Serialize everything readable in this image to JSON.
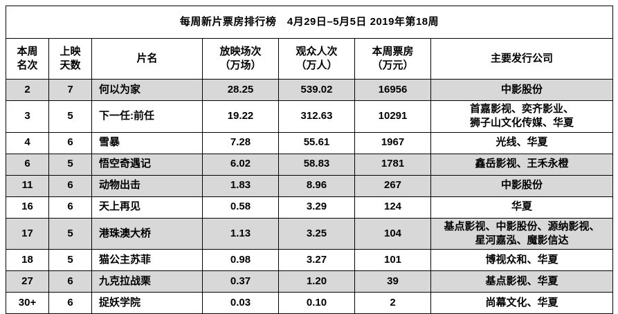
{
  "page": {
    "title": "每周新片票房排行榜　4月29日–5月5日  2019年第18周"
  },
  "table": {
    "headers": [
      {
        "key": "rank",
        "lines": [
          "本周",
          "名次"
        ]
      },
      {
        "key": "days",
        "lines": [
          "上映",
          "天数"
        ]
      },
      {
        "key": "film",
        "lines": [
          "片名"
        ]
      },
      {
        "key": "screenings",
        "lines": [
          "放映场次",
          "（万场）"
        ]
      },
      {
        "key": "audience",
        "lines": [
          "观众人次",
          "（万人）"
        ]
      },
      {
        "key": "box-office",
        "lines": [
          "本周票房",
          "（万元）"
        ]
      },
      {
        "key": "distributor",
        "lines": [
          "主要发行公司"
        ]
      }
    ],
    "rows": [
      {
        "rank": "2",
        "days": "7",
        "film": "何以为家",
        "screenings": "28.25",
        "audience": "539.02",
        "box_office": "16956",
        "distributors": [
          "中影股份"
        ],
        "shaded": true
      },
      {
        "rank": "3",
        "days": "5",
        "film": "下一任:前任",
        "screenings": "19.22",
        "audience": "312.63",
        "box_office": "10291",
        "distributors": [
          "首嘉影视、奕齐影业、",
          "狮子山文化传媒、华夏"
        ],
        "shaded": false
      },
      {
        "rank": "4",
        "days": "6",
        "film": "雪暴",
        "screenings": "7.28",
        "audience": "55.61",
        "box_office": "1967",
        "distributors": [
          "光线、华夏"
        ],
        "shaded": false
      },
      {
        "rank": "6",
        "days": "5",
        "film": "悟空奇遇记",
        "screenings": "6.02",
        "audience": "58.83",
        "box_office": "1781",
        "distributors": [
          "鑫岳影视、王禾永橙"
        ],
        "shaded": true
      },
      {
        "rank": "11",
        "days": "6",
        "film": "动物出击",
        "screenings": "1.83",
        "audience": "8.96",
        "box_office": "267",
        "distributors": [
          "中影股份"
        ],
        "shaded": true
      },
      {
        "rank": "16",
        "days": "6",
        "film": "天上再见",
        "screenings": "0.58",
        "audience": "3.29",
        "box_office": "124",
        "distributors": [
          "华夏"
        ],
        "shaded": false
      },
      {
        "rank": "17",
        "days": "5",
        "film": "港珠澳大桥",
        "screenings": "1.13",
        "audience": "3.25",
        "box_office": "104",
        "distributors": [
          "基点影视、中影股份、源纳影视、",
          "星河嘉泓、魔影信达"
        ],
        "shaded": true
      },
      {
        "rank": "18",
        "days": "5",
        "film": "猫公主苏菲",
        "screenings": "0.98",
        "audience": "3.27",
        "box_office": "101",
        "distributors": [
          "博视众和、华夏"
        ],
        "shaded": false
      },
      {
        "rank": "27",
        "days": "6",
        "film": "九克拉战栗",
        "screenings": "0.37",
        "audience": "1.20",
        "box_office": "39",
        "distributors": [
          "基点影视、华夏"
        ],
        "shaded": true
      },
      {
        "rank": "30+",
        "days": "6",
        "film": "捉妖学院",
        "screenings": "0.03",
        "audience": "0.10",
        "box_office": "2",
        "distributors": [
          "尚幕文化、华夏"
        ],
        "shaded": false
      }
    ]
  },
  "chart_data": {
    "type": "table",
    "title": "每周新片票房排行榜 4月29日–5月5日 2019年第18周",
    "columns": [
      "本周名次",
      "上映天数",
      "片名",
      "放映场次（万场）",
      "观众人次（万人）",
      "本周票房（万元）",
      "主要发行公司"
    ],
    "rows": [
      [
        "2",
        7,
        "何以为家",
        28.25,
        539.02,
        16956,
        "中影股份"
      ],
      [
        "3",
        5,
        "下一任:前任",
        19.22,
        312.63,
        10291,
        "首嘉影视、奕齐影业、狮子山文化传媒、华夏"
      ],
      [
        "4",
        6,
        "雪暴",
        7.28,
        55.61,
        1967,
        "光线、华夏"
      ],
      [
        "6",
        5,
        "悟空奇遇记",
        6.02,
        58.83,
        1781,
        "鑫岳影视、王禾永橙"
      ],
      [
        "11",
        6,
        "动物出击",
        1.83,
        8.96,
        267,
        "中影股份"
      ],
      [
        "16",
        6,
        "天上再见",
        0.58,
        3.29,
        124,
        "华夏"
      ],
      [
        "17",
        5,
        "港珠澳大桥",
        1.13,
        3.25,
        104,
        "基点影视、中影股份、源纳影视、星河嘉泓、魔影信达"
      ],
      [
        "18",
        5,
        "猫公主苏菲",
        0.98,
        3.27,
        101,
        "博视众和、华夏"
      ],
      [
        "27",
        6,
        "九克拉战栗",
        0.37,
        1.2,
        39,
        "基点影视、华夏"
      ],
      [
        "30+",
        6,
        "捉妖学院",
        0.03,
        0.1,
        2,
        "尚幕文化、华夏"
      ]
    ]
  }
}
